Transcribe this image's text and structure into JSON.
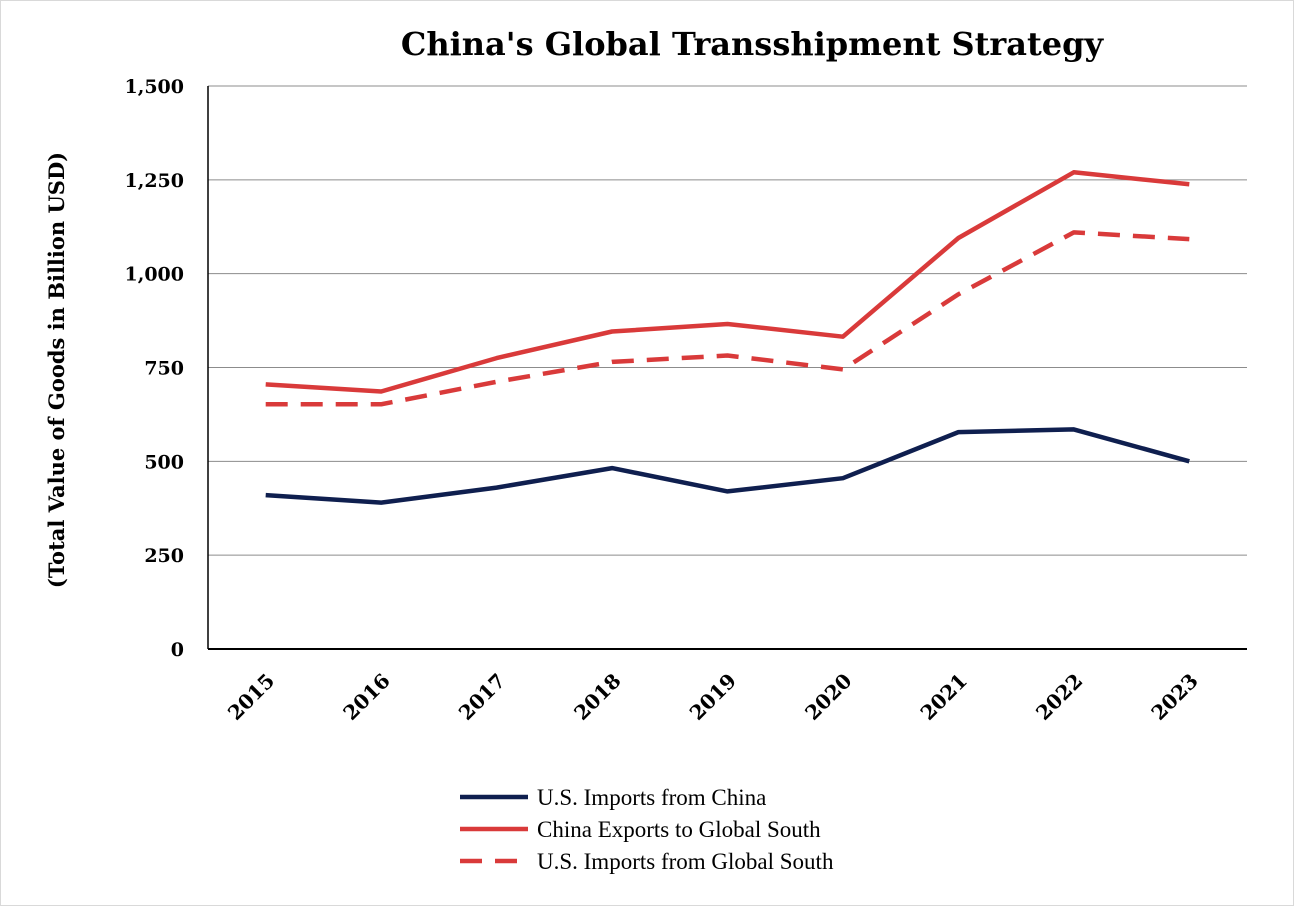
{
  "chart_data": {
    "type": "line",
    "title": "China's Global Transshipment Strategy",
    "xlabel": "",
    "ylabel": "(Total Value of Goods in Billion USD)",
    "ylim": [
      0,
      1500
    ],
    "yticks": [
      0,
      250,
      500,
      750,
      1000,
      1250,
      1500
    ],
    "ytick_labels": [
      "0",
      "250",
      "500",
      "750",
      "1,000",
      "1,250",
      "1,500"
    ],
    "grid": true,
    "legend_position": "bottom",
    "categories": [
      "2015",
      "2016",
      "2017",
      "2018",
      "2019",
      "2020",
      "2021",
      "2022",
      "2023"
    ],
    "series": [
      {
        "name": "U.S. Imports from China",
        "color": "#0f1f4f",
        "style": "solid",
        "values": [
          410,
          390,
          430,
          482,
          420,
          455,
          578,
          585,
          500
        ]
      },
      {
        "name": "China Exports to Global South",
        "color": "#d93a3a",
        "style": "solid",
        "values": [
          705,
          686,
          775,
          846,
          866,
          832,
          1095,
          1270,
          1238
        ]
      },
      {
        "name": "U.S. Imports from Global South",
        "color": "#d93a3a",
        "style": "dashed",
        "values": [
          652,
          652,
          712,
          765,
          782,
          745,
          945,
          1110,
          1092
        ]
      }
    ]
  }
}
